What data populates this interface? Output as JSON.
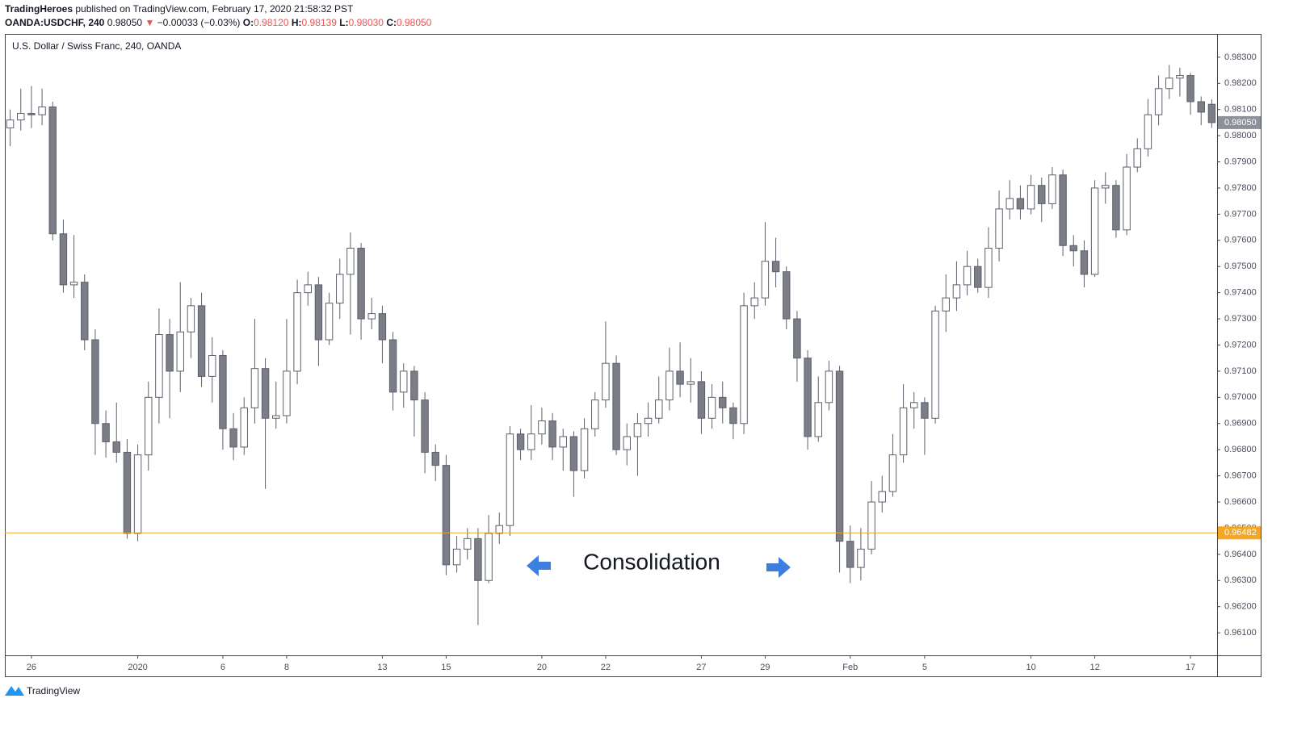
{
  "header": {
    "publisher": "TradingHeroes",
    "published": "published on TradingView.com, February 17, 2020 21:58:32 PST",
    "symbol": "OANDA:USDCHF, 240",
    "last": "0.98050",
    "arrow": "▼",
    "change": "−0.00033 (−0.03%)",
    "o_label": "O:",
    "o": "0.98120",
    "h_label": "H:",
    "h": "0.98139",
    "l_label": "L:",
    "l": "0.98030",
    "c_label": "C:",
    "c": "0.98050"
  },
  "footer": {
    "brand": "TradingView"
  },
  "chart_data": {
    "type": "candlestick",
    "title": "U.S. Dollar / Swiss Franc, 240, OANDA",
    "up_color": "#ffffff",
    "down_color": "#7b7e87",
    "wick_color": "#5d606b",
    "ylim": [
      0.96014,
      0.98389
    ],
    "yticks": [
      {
        "value": 0.961,
        "label": "0.96100"
      },
      {
        "value": 0.962,
        "label": "0.96200"
      },
      {
        "value": 0.963,
        "label": "0.96300"
      },
      {
        "value": 0.964,
        "label": "0.96400"
      },
      {
        "value": 0.965,
        "label": "0.96500"
      },
      {
        "value": 0.966,
        "label": "0.96600"
      },
      {
        "value": 0.967,
        "label": "0.96700"
      },
      {
        "value": 0.968,
        "label": "0.96800"
      },
      {
        "value": 0.969,
        "label": "0.96900"
      },
      {
        "value": 0.97,
        "label": "0.97000"
      },
      {
        "value": 0.971,
        "label": "0.97100"
      },
      {
        "value": 0.972,
        "label": "0.97200"
      },
      {
        "value": 0.973,
        "label": "0.97300"
      },
      {
        "value": 0.974,
        "label": "0.97400"
      },
      {
        "value": 0.975,
        "label": "0.97500"
      },
      {
        "value": 0.976,
        "label": "0.97600"
      },
      {
        "value": 0.977,
        "label": "0.97700"
      },
      {
        "value": 0.978,
        "label": "0.97800"
      },
      {
        "value": 0.979,
        "label": "0.97900"
      },
      {
        "value": 0.98,
        "label": "0.98000"
      },
      {
        "value": 0.981,
        "label": "0.98100"
      },
      {
        "value": 0.982,
        "label": "0.98200"
      },
      {
        "value": 0.983,
        "label": "0.98300"
      }
    ],
    "xticks": [
      {
        "value": 2,
        "label": "26"
      },
      {
        "value": 12,
        "label": "2020"
      },
      {
        "value": 20,
        "label": "6"
      },
      {
        "value": 26,
        "label": "8"
      },
      {
        "value": 35,
        "label": "13"
      },
      {
        "value": 41,
        "label": "15"
      },
      {
        "value": 50,
        "label": "20"
      },
      {
        "value": 56,
        "label": "22"
      },
      {
        "value": 65,
        "label": "27"
      },
      {
        "value": 71,
        "label": "29"
      },
      {
        "value": 79,
        "label": "Feb"
      },
      {
        "value": 86,
        "label": "5"
      },
      {
        "value": 96,
        "label": "10"
      },
      {
        "value": 102,
        "label": "12"
      },
      {
        "value": 111,
        "label": "17"
      }
    ],
    "hline": {
      "value": 0.96482,
      "label": "0.96482",
      "color": "#f5a623"
    },
    "last_price": {
      "value": 0.9805,
      "label": "0.98050",
      "color": "#8d9099"
    },
    "annotation": {
      "text": "Consolidation",
      "color": "#2e8ee6"
    },
    "ohlc": [
      [
        0.9803,
        0.981,
        0.9796,
        0.9806
      ],
      [
        0.9806,
        0.9818,
        0.9802,
        0.98085
      ],
      [
        0.98085,
        0.9819,
        0.9803,
        0.9808
      ],
      [
        0.9808,
        0.9818,
        0.9804,
        0.9811
      ],
      [
        0.9811,
        0.9813,
        0.976,
        0.97625
      ],
      [
        0.97625,
        0.9768,
        0.974,
        0.9743
      ],
      [
        0.9743,
        0.9762,
        0.9738,
        0.9744
      ],
      [
        0.9744,
        0.9747,
        0.9718,
        0.9722
      ],
      [
        0.9722,
        0.9726,
        0.9678,
        0.969
      ],
      [
        0.969,
        0.9695,
        0.9677,
        0.9683
      ],
      [
        0.9683,
        0.9698,
        0.9675,
        0.9679
      ],
      [
        0.9679,
        0.9684,
        0.9646,
        0.9648
      ],
      [
        0.9648,
        0.9682,
        0.9645,
        0.9678
      ],
      [
        0.9678,
        0.9706,
        0.9672,
        0.97
      ],
      [
        0.97,
        0.9734,
        0.969,
        0.9724
      ],
      [
        0.9724,
        0.973,
        0.9692,
        0.971
      ],
      [
        0.971,
        0.9744,
        0.9702,
        0.9725
      ],
      [
        0.9725,
        0.9738,
        0.9715,
        0.9735
      ],
      [
        0.9735,
        0.974,
        0.9704,
        0.9708
      ],
      [
        0.9708,
        0.9723,
        0.9698,
        0.9716
      ],
      [
        0.9716,
        0.9718,
        0.968,
        0.9688
      ],
      [
        0.9688,
        0.9694,
        0.9676,
        0.9681
      ],
      [
        0.9681,
        0.97,
        0.9678,
        0.9696
      ],
      [
        0.9696,
        0.973,
        0.969,
        0.9711
      ],
      [
        0.9711,
        0.9715,
        0.9665,
        0.9692
      ],
      [
        0.9692,
        0.9706,
        0.9688,
        0.9693
      ],
      [
        0.9693,
        0.973,
        0.969,
        0.971
      ],
      [
        0.971,
        0.9745,
        0.9705,
        0.974
      ],
      [
        0.974,
        0.9748,
        0.9735,
        0.9743
      ],
      [
        0.9743,
        0.9746,
        0.9712,
        0.9722
      ],
      [
        0.9722,
        0.974,
        0.972,
        0.9736
      ],
      [
        0.9736,
        0.9753,
        0.973,
        0.9747
      ],
      [
        0.9747,
        0.9763,
        0.9724,
        0.9757
      ],
      [
        0.9757,
        0.9759,
        0.9722,
        0.973
      ],
      [
        0.973,
        0.9738,
        0.9726,
        0.9732
      ],
      [
        0.9732,
        0.9735,
        0.9713,
        0.9722
      ],
      [
        0.9722,
        0.9725,
        0.9695,
        0.9702
      ],
      [
        0.9702,
        0.9713,
        0.9696,
        0.971
      ],
      [
        0.971,
        0.9712,
        0.9685,
        0.9699
      ],
      [
        0.9699,
        0.9702,
        0.9671,
        0.9679
      ],
      [
        0.9679,
        0.9682,
        0.9668,
        0.9674
      ],
      [
        0.9674,
        0.9678,
        0.9632,
        0.9636
      ],
      [
        0.9636,
        0.9647,
        0.9633,
        0.9642
      ],
      [
        0.9642,
        0.965,
        0.9638,
        0.9646
      ],
      [
        0.9646,
        0.965,
        0.9613,
        0.963
      ],
      [
        0.963,
        0.9655,
        0.9629,
        0.9648
      ],
      [
        0.9648,
        0.9656,
        0.9644,
        0.9651
      ],
      [
        0.9651,
        0.9689,
        0.9647,
        0.9686
      ],
      [
        0.9686,
        0.9688,
        0.9676,
        0.968
      ],
      [
        0.968,
        0.9697,
        0.9676,
        0.9686
      ],
      [
        0.9686,
        0.9696,
        0.9682,
        0.9691
      ],
      [
        0.9691,
        0.9694,
        0.9676,
        0.9681
      ],
      [
        0.9681,
        0.9688,
        0.9672,
        0.9685
      ],
      [
        0.9685,
        0.9687,
        0.9662,
        0.9672
      ],
      [
        0.9672,
        0.9692,
        0.9669,
        0.9688
      ],
      [
        0.9688,
        0.9702,
        0.9685,
        0.9699
      ],
      [
        0.9699,
        0.9729,
        0.9696,
        0.9713
      ],
      [
        0.9713,
        0.9716,
        0.9678,
        0.968
      ],
      [
        0.968,
        0.969,
        0.9674,
        0.9685
      ],
      [
        0.9685,
        0.9694,
        0.967,
        0.969
      ],
      [
        0.969,
        0.9698,
        0.9685,
        0.9692
      ],
      [
        0.9692,
        0.9708,
        0.969,
        0.9699
      ],
      [
        0.9699,
        0.9719,
        0.9695,
        0.971
      ],
      [
        0.971,
        0.9721,
        0.97,
        0.9705
      ],
      [
        0.9705,
        0.9715,
        0.9698,
        0.9706
      ],
      [
        0.9706,
        0.971,
        0.9686,
        0.9692
      ],
      [
        0.9692,
        0.9705,
        0.9688,
        0.97
      ],
      [
        0.97,
        0.9706,
        0.969,
        0.9696
      ],
      [
        0.9696,
        0.9698,
        0.9684,
        0.969
      ],
      [
        0.969,
        0.974,
        0.9686,
        0.9735
      ],
      [
        0.9735,
        0.9744,
        0.973,
        0.9738
      ],
      [
        0.9738,
        0.9767,
        0.9735,
        0.9752
      ],
      [
        0.9752,
        0.9761,
        0.9742,
        0.9748
      ],
      [
        0.9748,
        0.975,
        0.9726,
        0.973
      ],
      [
        0.973,
        0.9733,
        0.9706,
        0.9715
      ],
      [
        0.9715,
        0.9718,
        0.968,
        0.9685
      ],
      [
        0.9685,
        0.9708,
        0.9683,
        0.9698
      ],
      [
        0.9698,
        0.9714,
        0.9695,
        0.971
      ],
      [
        0.971,
        0.9712,
        0.9633,
        0.9645
      ],
      [
        0.9645,
        0.9651,
        0.9629,
        0.9635
      ],
      [
        0.9635,
        0.965,
        0.963,
        0.9642
      ],
      [
        0.9642,
        0.9668,
        0.964,
        0.966
      ],
      [
        0.966,
        0.967,
        0.9656,
        0.9664
      ],
      [
        0.9664,
        0.9686,
        0.9662,
        0.9678
      ],
      [
        0.9678,
        0.9705,
        0.9675,
        0.9696
      ],
      [
        0.9696,
        0.9702,
        0.9688,
        0.9698
      ],
      [
        0.9698,
        0.97,
        0.9678,
        0.9692
      ],
      [
        0.9692,
        0.9735,
        0.969,
        0.9733
      ],
      [
        0.9733,
        0.9747,
        0.9725,
        0.9738
      ],
      [
        0.9738,
        0.9752,
        0.9733,
        0.9743
      ],
      [
        0.9743,
        0.9756,
        0.9739,
        0.975
      ],
      [
        0.975,
        0.9753,
        0.974,
        0.9742
      ],
      [
        0.9742,
        0.9765,
        0.9738,
        0.9757
      ],
      [
        0.9757,
        0.9779,
        0.9752,
        0.9772
      ],
      [
        0.9772,
        0.9783,
        0.9768,
        0.9776
      ],
      [
        0.9776,
        0.9781,
        0.9768,
        0.9772
      ],
      [
        0.9772,
        0.9785,
        0.977,
        0.9781
      ],
      [
        0.9781,
        0.9784,
        0.9767,
        0.9774
      ],
      [
        0.9774,
        0.9788,
        0.9772,
        0.9785
      ],
      [
        0.9785,
        0.9787,
        0.9754,
        0.9758
      ],
      [
        0.9758,
        0.9762,
        0.975,
        0.9756
      ],
      [
        0.9756,
        0.976,
        0.9742,
        0.9747
      ],
      [
        0.9747,
        0.9783,
        0.9746,
        0.978
      ],
      [
        0.978,
        0.9786,
        0.9774,
        0.9781
      ],
      [
        0.9781,
        0.9783,
        0.9761,
        0.9764
      ],
      [
        0.9764,
        0.9793,
        0.9762,
        0.9788
      ],
      [
        0.9788,
        0.9799,
        0.9786,
        0.9795
      ],
      [
        0.9795,
        0.9814,
        0.9792,
        0.9808
      ],
      [
        0.9808,
        0.9823,
        0.9804,
        0.9818
      ],
      [
        0.9818,
        0.9827,
        0.9814,
        0.9822
      ],
      [
        0.9822,
        0.9826,
        0.9815,
        0.9823
      ],
      [
        0.9823,
        0.9824,
        0.9808,
        0.9813
      ],
      [
        0.9813,
        0.9815,
        0.9804,
        0.9809
      ],
      [
        0.9812,
        0.98139,
        0.9803,
        0.9805
      ]
    ]
  }
}
